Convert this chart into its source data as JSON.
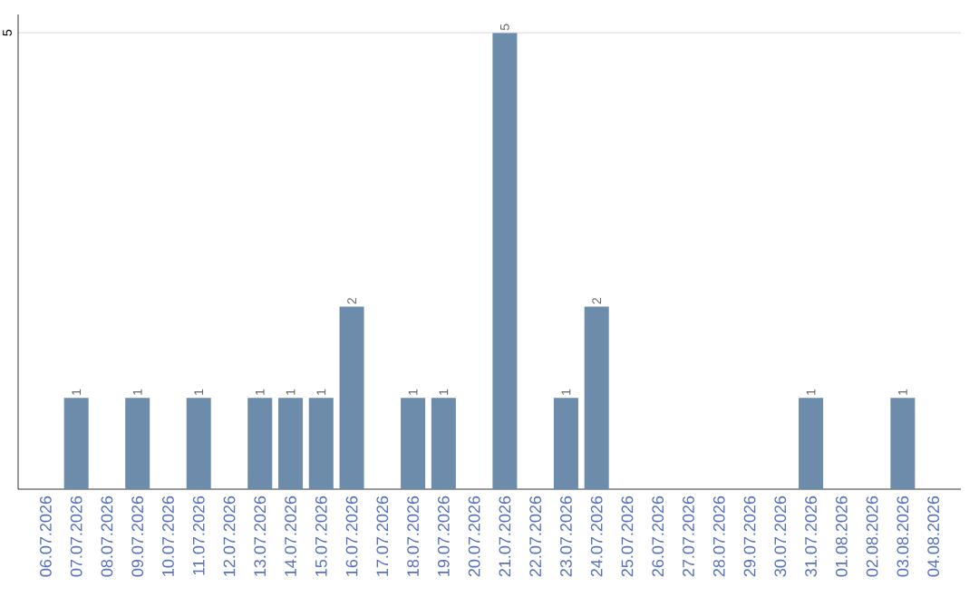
{
  "chart_data": {
    "type": "bar",
    "categories": [
      "06.07.2026",
      "07.07.2026",
      "08.07.2026",
      "09.07.2026",
      "10.07.2026",
      "11.07.2026",
      "12.07.2026",
      "13.07.2026",
      "14.07.2026",
      "15.07.2026",
      "16.07.2026",
      "17.07.2026",
      "18.07.2026",
      "19.07.2026",
      "20.07.2026",
      "21.07.2026",
      "22.07.2026",
      "23.07.2026",
      "24.07.2026",
      "25.07.2026",
      "26.07.2026",
      "27.07.2026",
      "28.07.2026",
      "29.07.2026",
      "30.07.2026",
      "31.07.2026",
      "01.08.2026",
      "02.08.2026",
      "03.08.2026",
      "04.08.2026"
    ],
    "values": [
      0,
      1,
      0,
      1,
      0,
      1,
      0,
      1,
      1,
      1,
      2,
      0,
      1,
      1,
      0,
      5,
      0,
      1,
      2,
      0,
      0,
      0,
      0,
      0,
      0,
      1,
      0,
      0,
      1,
      0
    ],
    "value_labels": [
      null,
      "1",
      null,
      "1",
      null,
      "1",
      null,
      "1",
      "1",
      "1",
      "2",
      null,
      "1",
      "1",
      null,
      "5",
      null,
      "1",
      "2",
      null,
      null,
      null,
      null,
      null,
      null,
      "1",
      null,
      null,
      "1",
      null
    ],
    "color": "#6d8cab",
    "ylim": [
      0,
      5.2
    ],
    "yticks": [
      5
    ],
    "grid": "y"
  }
}
